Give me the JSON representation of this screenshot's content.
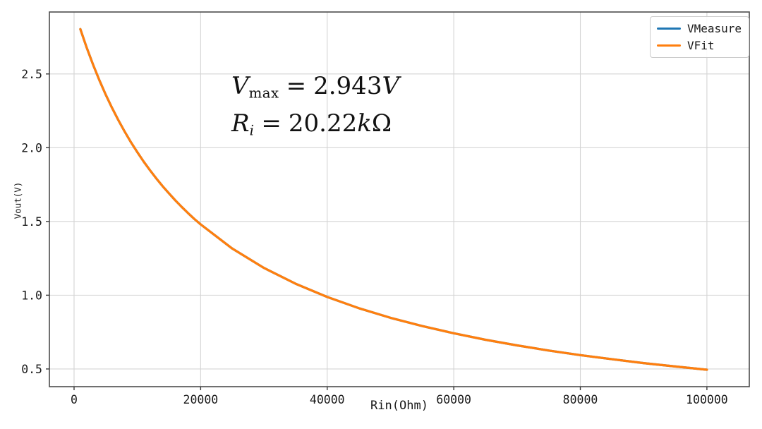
{
  "figure": {
    "background": "#ffffff"
  },
  "chart_data": {
    "type": "line",
    "title": "",
    "xlabel": "Rin(Ohm)",
    "ylabel": "Vout(V)",
    "xlim": [
      -3900,
      106700
    ],
    "ylim": [
      0.38,
      2.92
    ],
    "xticks": [
      0,
      20000,
      40000,
      60000,
      80000,
      100000
    ],
    "xtick_labels": [
      "0",
      "20000",
      "40000",
      "60000",
      "80000",
      "100000"
    ],
    "yticks": [
      0.5,
      1.0,
      1.5,
      2.0,
      2.5
    ],
    "ytick_labels": [
      "0.5",
      "1.0",
      "1.5",
      "2.0",
      "2.5"
    ],
    "grid": true,
    "legend_position": "upper right",
    "fit_params": {
      "vmax_V": 2.943,
      "ri_ohm": 20220
    },
    "series": [
      {
        "name": "VMeasure",
        "color": "#1f77b4",
        "x": [
          1000,
          2000,
          3000,
          4000,
          5000,
          6000,
          7000,
          8000,
          9000,
          10000,
          11000,
          12000,
          13000,
          14000,
          15000,
          16000,
          17000,
          18000,
          19000,
          20000,
          25000,
          30000,
          35000,
          40000,
          45000,
          50000,
          55000,
          60000,
          65000,
          70000,
          75000,
          80000,
          85000,
          90000,
          95000,
          100000
        ],
        "y": [
          2.804,
          2.678,
          2.563,
          2.457,
          2.36,
          2.27,
          2.186,
          2.109,
          2.036,
          1.969,
          1.906,
          1.847,
          1.791,
          1.739,
          1.69,
          1.643,
          1.599,
          1.557,
          1.517,
          1.48,
          1.316,
          1.185,
          1.078,
          0.988,
          0.912,
          0.847,
          0.791,
          0.742,
          0.698,
          0.66,
          0.625,
          0.594,
          0.566,
          0.54,
          0.517,
          0.495
        ]
      },
      {
        "name": "VFit",
        "color": "#ff7f0e",
        "x": [
          1000,
          2000,
          3000,
          4000,
          5000,
          6000,
          7000,
          8000,
          9000,
          10000,
          11000,
          12000,
          13000,
          14000,
          15000,
          16000,
          17000,
          18000,
          19000,
          20000,
          25000,
          30000,
          35000,
          40000,
          45000,
          50000,
          55000,
          60000,
          65000,
          70000,
          75000,
          80000,
          85000,
          90000,
          95000,
          100000
        ],
        "y": [
          2.804,
          2.678,
          2.563,
          2.457,
          2.36,
          2.27,
          2.186,
          2.109,
          2.036,
          1.969,
          1.906,
          1.847,
          1.791,
          1.739,
          1.69,
          1.643,
          1.599,
          1.557,
          1.517,
          1.48,
          1.316,
          1.185,
          1.078,
          0.988,
          0.912,
          0.847,
          0.791,
          0.742,
          0.698,
          0.66,
          0.625,
          0.594,
          0.566,
          0.54,
          0.517,
          0.495
        ]
      }
    ],
    "annotations": [
      {
        "text": "V_max = 2.943V",
        "var": "V",
        "sub": "max",
        "eq": "=",
        "value": "2.943",
        "unit_italic": "V",
        "unit_upright": ""
      },
      {
        "text": "R_i = 20.22kΩ",
        "var": "R",
        "sub": "i",
        "eq": "=",
        "value": "20.22",
        "unit_italic": "k",
        "unit_upright": "Ω"
      }
    ]
  },
  "legend": {
    "items": [
      {
        "label": "VMeasure",
        "color": "#1f77b4"
      },
      {
        "label": "VFit",
        "color": "#ff7f0e"
      }
    ]
  },
  "axes": {
    "grid_color": "#d4d4d4",
    "spine_color": "#4d4d4d",
    "tick_color": "#3a3a3a",
    "text_color": "#1a1a1a",
    "tick_font_px": 16.5
  }
}
